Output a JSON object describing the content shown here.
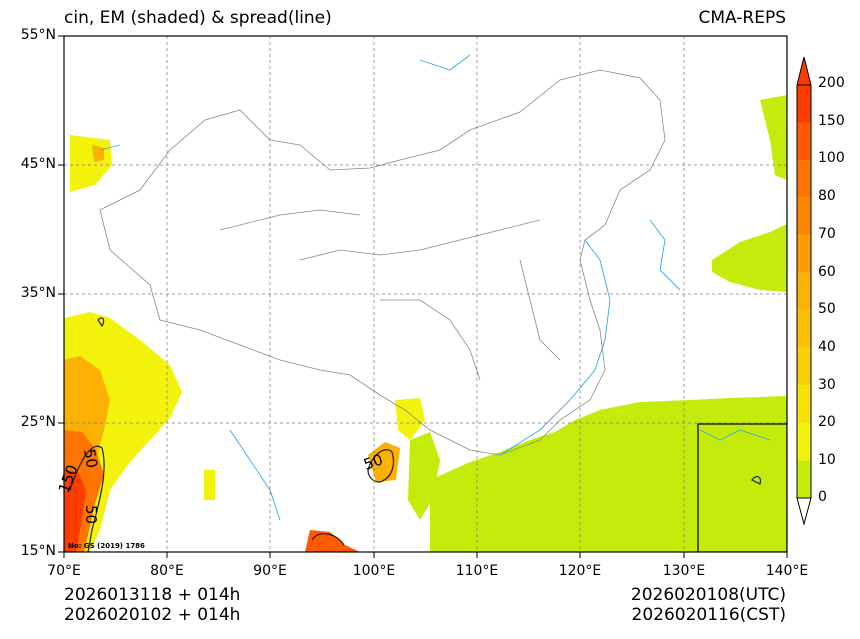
{
  "header": {
    "title": "cin, EM (shaded) & spread(line)",
    "source": "CMA-REPS"
  },
  "axes": {
    "lat_labels": [
      "55°N",
      "45°N",
      "35°N",
      "25°N",
      "15°N"
    ],
    "lon_labels": [
      "70°E",
      "80°E",
      "90°E",
      "100°E",
      "110°E",
      "120°E",
      "130°E",
      "140°E"
    ]
  },
  "colorbar": {
    "levels": [
      "0",
      "10",
      "20",
      "30",
      "40",
      "50",
      "60",
      "70",
      "80",
      "100",
      "150",
      "200"
    ],
    "colors": [
      "#c4ec0a",
      "#f2f20a",
      "#f6e008",
      "#f8d006",
      "#fac004",
      "#fcb002",
      "#fd9c00",
      "#fd8800",
      "#fe7400",
      "#fe5a00",
      "#ff3c00"
    ]
  },
  "contour_labels": [
    "150",
    "50",
    "50",
    "50"
  ],
  "map_note": "No: GS (2019) 1786",
  "footer": {
    "init_utc": "2026013118  +  014h",
    "init_cst": "2026020102  +  014h",
    "valid_utc": "2026020108(UTC)",
    "valid_cst": "2026020116(CST)"
  },
  "icons": {
    "colorbar_top": "triangle-up-icon",
    "colorbar_bottom": "triangle-down-icon"
  }
}
